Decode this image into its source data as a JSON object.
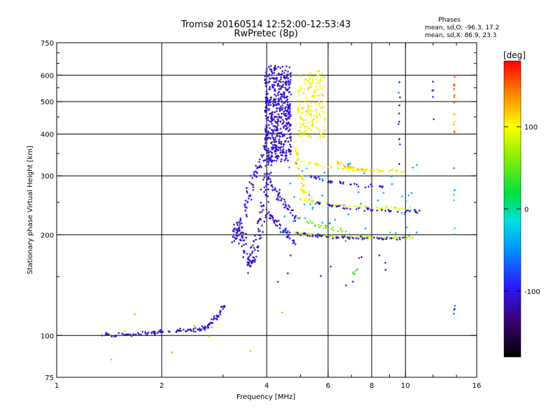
{
  "chart_data": {
    "type": "scatter",
    "title": "Tromsø 20160514 12:52:00-12:53:43",
    "subtitle": "RwPretec (8p)",
    "xlabel": "Frequency [MHz]",
    "ylabel": "Stationary phase Virtual Height [km]",
    "x_scale": "log",
    "y_scale": "log",
    "xlim": [
      1,
      16
    ],
    "ylim": [
      75,
      750
    ],
    "x_ticks": [
      1,
      2,
      4,
      6,
      8,
      10,
      16
    ],
    "x_tick_labels": [
      "1",
      "2",
      "4",
      "6",
      "8",
      "10",
      "16"
    ],
    "x_minor_ticks": [
      3,
      5,
      7,
      9,
      12,
      14
    ],
    "y_ticks": [
      75,
      100,
      200,
      300,
      400,
      500,
      600,
      750
    ],
    "y_tick_labels": [
      "75",
      "100",
      "200",
      "300",
      "400",
      "500",
      "600",
      "750"
    ],
    "grid_x": [
      2,
      4,
      6,
      8,
      10
    ],
    "grid_y": [
      100,
      200,
      300,
      400,
      500,
      600
    ],
    "stats": {
      "title": "Phases",
      "line1": "mean, sd,O: -96.3, 17.2",
      "line2": "mean, sd,X:  86.9, 23.3"
    },
    "colorbar": {
      "label": "[deg]",
      "range": [
        -180,
        180
      ],
      "ticks": [
        100,
        0,
        -100
      ],
      "tick_labels": [
        "100",
        "0",
        "-100"
      ]
    },
    "seed": 20160514,
    "traces": [
      {
        "kind": "curve",
        "phase": -110,
        "jitter_f": 0.02,
        "jitter_h": 0.012,
        "density": 14,
        "pts": [
          [
            1.35,
            101
          ],
          [
            1.5,
            100
          ],
          [
            1.7,
            101
          ],
          [
            1.9,
            102
          ],
          [
            2.1,
            103
          ],
          [
            2.4,
            104
          ],
          [
            2.6,
            104
          ],
          [
            2.75,
            108
          ],
          [
            2.9,
            115
          ],
          [
            3.0,
            123
          ]
        ]
      },
      {
        "kind": "curve",
        "phase": -110,
        "jitter_f": 0.03,
        "jitter_h": 0.04,
        "density": 18,
        "pts": [
          [
            3.2,
            190
          ],
          [
            3.3,
            215
          ],
          [
            3.4,
            200
          ],
          [
            3.5,
            175
          ],
          [
            3.6,
            158
          ],
          [
            3.7,
            180
          ],
          [
            3.8,
            210
          ],
          [
            3.9,
            250
          ],
          [
            4.0,
            300
          ],
          [
            4.1,
            360
          ]
        ]
      },
      {
        "kind": "curve",
        "phase": -105,
        "jitter_f": 0.025,
        "jitter_h": 0.035,
        "density": 14,
        "pts": [
          [
            3.3,
            195
          ],
          [
            3.45,
            230
          ],
          [
            3.55,
            265
          ],
          [
            3.7,
            300
          ],
          [
            3.85,
            330
          ],
          [
            4.0,
            370
          ]
        ]
      },
      {
        "kind": "blob",
        "phase": -110,
        "f": [
          3.95,
          4.7
        ],
        "h": [
          330,
          640
        ],
        "n": 520
      },
      {
        "kind": "curve",
        "phase": -110,
        "jitter_f": 0.02,
        "jitter_h": 0.03,
        "density": 12,
        "pts": [
          [
            4.0,
            300
          ],
          [
            4.2,
            275
          ],
          [
            4.4,
            255
          ],
          [
            4.6,
            240
          ],
          [
            4.9,
            225
          ]
        ]
      },
      {
        "kind": "curve",
        "phase": -110,
        "jitter_f": 0.02,
        "jitter_h": 0.03,
        "density": 12,
        "pts": [
          [
            4.0,
            235
          ],
          [
            4.2,
            220
          ],
          [
            4.4,
            210
          ],
          [
            4.6,
            200
          ],
          [
            4.8,
            190
          ]
        ]
      },
      {
        "kind": "blob",
        "phase": 100,
        "f": [
          4.9,
          5.9
        ],
        "h": [
          390,
          620
        ],
        "n": 170
      },
      {
        "kind": "curve",
        "phase": 110,
        "jitter_f": 0.02,
        "jitter_h": 0.03,
        "density": 10,
        "pts": [
          [
            4.8,
            380
          ],
          [
            4.9,
            330
          ],
          [
            5.0,
            295
          ],
          [
            5.1,
            270
          ],
          [
            5.3,
            255
          ]
        ]
      },
      {
        "kind": "curve",
        "phase": 80,
        "jitter_f": 0.015,
        "jitter_h": 0.01,
        "density": 12,
        "pts": [
          [
            4.8,
            203
          ],
          [
            5.2,
            200
          ],
          [
            5.8,
            199
          ],
          [
            6.5,
            198
          ],
          [
            7.5,
            197
          ],
          [
            8.5,
            196
          ],
          [
            9.5,
            196
          ],
          [
            10.5,
            196
          ]
        ]
      },
      {
        "kind": "curve",
        "phase": -110,
        "jitter_f": 0.015,
        "jitter_h": 0.01,
        "density": 12,
        "pts": [
          [
            4.9,
            202
          ],
          [
            5.5,
            199
          ],
          [
            6.3,
            197
          ],
          [
            7.2,
            196
          ],
          [
            8.5,
            195
          ],
          [
            10.0,
            195
          ]
        ]
      },
      {
        "kind": "curve",
        "phase": 95,
        "jitter_f": 0.015,
        "jitter_h": 0.012,
        "density": 10,
        "pts": [
          [
            4.9,
            335
          ],
          [
            5.5,
            325
          ],
          [
            6.2,
            318
          ],
          [
            7.0,
            313
          ],
          [
            8.0,
            311
          ],
          [
            9.0,
            310
          ],
          [
            10.0,
            309
          ]
        ]
      },
      {
        "kind": "curve",
        "phase": -105,
        "jitter_f": 0.015,
        "jitter_h": 0.012,
        "density": 9,
        "pts": [
          [
            5.3,
            300
          ],
          [
            5.8,
            290
          ],
          [
            6.5,
            285
          ],
          [
            7.5,
            280
          ],
          [
            8.5,
            279
          ]
        ]
      },
      {
        "kind": "curve",
        "phase": 90,
        "jitter_f": 0.015,
        "jitter_h": 0.012,
        "density": 9,
        "pts": [
          [
            5.0,
            255
          ],
          [
            5.6,
            248
          ],
          [
            6.5,
            244
          ],
          [
            7.5,
            242
          ],
          [
            9.0,
            240
          ],
          [
            10.5,
            238
          ]
        ]
      },
      {
        "kind": "curve",
        "phase": -110,
        "jitter_f": 0.015,
        "jitter_h": 0.012,
        "density": 9,
        "pts": [
          [
            5.5,
            250
          ],
          [
            6.2,
            243
          ],
          [
            7.0,
            240
          ],
          [
            8.5,
            237
          ],
          [
            10.0,
            235
          ],
          [
            11.0,
            235
          ]
        ]
      },
      {
        "kind": "curve",
        "phase": 120,
        "jitter_f": 0.012,
        "jitter_h": 0.01,
        "density": 8,
        "pts": [
          [
            6.3,
            330
          ],
          [
            6.8,
            320
          ],
          [
            7.3,
            315
          ],
          [
            8.0,
            312
          ]
        ]
      },
      {
        "kind": "curve",
        "phase": 60,
        "jitter_f": 0.015,
        "jitter_h": 0.015,
        "density": 8,
        "pts": [
          [
            5.0,
            225
          ],
          [
            5.5,
            215
          ],
          [
            6.0,
            210
          ],
          [
            6.8,
            205
          ]
        ]
      },
      {
        "kind": "blob",
        "phase": -40,
        "f": [
          4.4,
          11.0
        ],
        "h": [
          190,
          330
        ],
        "n": 60
      },
      {
        "kind": "column",
        "phase": -110,
        "f": 9.6,
        "h": [
          300,
          600
        ],
        "n": 10
      },
      {
        "kind": "column",
        "phase": 150,
        "f": 13.8,
        "h": [
          400,
          610
        ],
        "n": 14
      },
      {
        "kind": "column",
        "phase": -30,
        "f": 13.8,
        "h": [
          200,
          330
        ],
        "n": 6
      },
      {
        "kind": "column",
        "phase": -80,
        "f": 13.8,
        "h": [
          110,
          125
        ],
        "n": 4
      },
      {
        "kind": "column",
        "phase": -100,
        "f": 12.0,
        "h": [
          390,
          600
        ],
        "n": 5
      },
      {
        "kind": "blob",
        "phase": 40,
        "f": [
          7.0,
          7.3
        ],
        "h": [
          152,
          158
        ],
        "n": 6
      },
      {
        "kind": "blob",
        "phase": 130,
        "f": [
          1.3,
          4.5
        ],
        "h": [
          80,
          125
        ],
        "n": 10
      },
      {
        "kind": "blob",
        "phase": -110,
        "f": [
          4.0,
          9.0
        ],
        "h": [
          140,
          180
        ],
        "n": 12
      }
    ]
  }
}
